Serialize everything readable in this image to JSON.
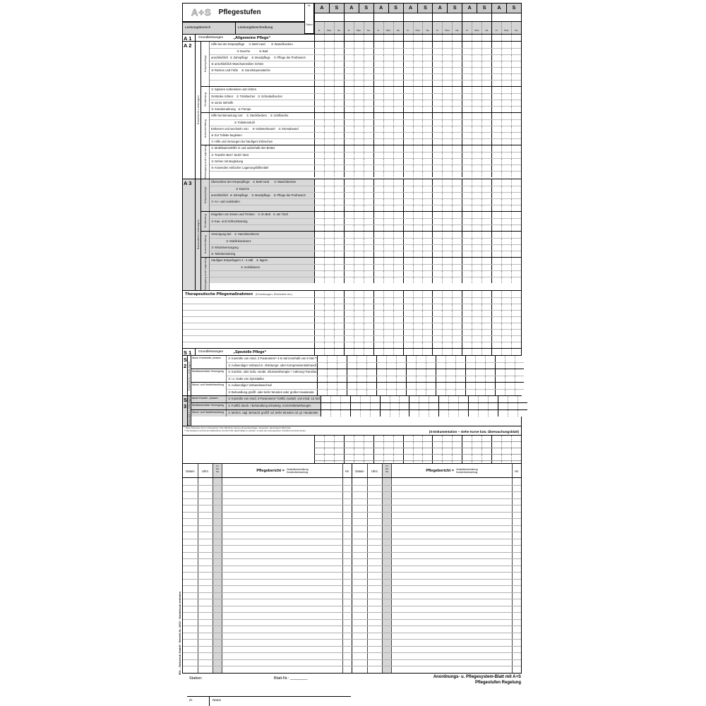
{
  "logo": "A+S",
  "title": "Pflegestufen",
  "grid": {
    "hz_label": "Hz.",
    "datum_label": "Datum",
    "pair_count": 7,
    "pair_headers": [
      "A",
      "S"
    ],
    "shift_labels": [
      "Fr.",
      "Über.",
      "Na."
    ]
  },
  "col_headers": {
    "bereich": "Leistungsbereich",
    "beschreibung": "Leistungsbeschreibung"
  },
  "a1": {
    "code": "A 1",
    "label": "Grundleistungen",
    "quote": "„Allgemeine Pflege“"
  },
  "a2": {
    "code": "A 2",
    "side": "Erweiterte Leistungen",
    "groups": [
      {
        "label": "Körperpflege",
        "rows": [
          "Hilfe bei der Körperpflege     ① Bett/-rand       ② Waschbecken",
          "                               ③ Dusche           ④ Bad",
          "anschließlich  ⑤ Zahnpflege    ⑥ Mundpflege    ⑦ Pflege der Prothese/n",
          "⑧ anschließlich Waschutensilien richten",
          "⑨ Rücken und Füße    ⑩ Ganzkörperwäsche",
          "",
          ""
        ]
      },
      {
        "label": "Ernährung",
        "rows": [
          "① Speisen vorbereiten und richten",
          "Getränke richten:   ② Trinkbecher   ③ Schnabelbecher",
          "④ sonst. Behelfe",
          "⑤ Sondennahrung   ⑥ Pumpe"
        ]
      },
      {
        "label": "Ausscheidung",
        "rows": [
          "Hilfe bei Benutzung von:    ① Steckbecken    ② Urinflasche",
          "                            ③ Toilettenstuhl",
          "Entleeren und wechseln von:    ④ Katheterbeutel    ⑤ Stomabeutel",
          "⑥ Zur Toilette begleiten",
          "⑦ Hilfe und Versorgen bei häufigem Erbrechen"
        ]
      },
      {
        "label": "Bewegung und Lagerung",
        "rows": [
          "① Mobilisationshilfe in und außerhalb des Bettes",
          "② Transfer Bett / Stuhl / Bett",
          "③ Gehen mit Begleitung",
          "④ Anwenden einfacher Lagerungshilfsmittel",
          ""
        ]
      }
    ]
  },
  "a3": {
    "code": "A 3",
    "side": "Besondere Leistungen",
    "groups": [
      {
        "label": "Körperpflege",
        "rows": [
          "Übernahme der Körperpflege:   ① Bett/-rand      ② Waschbecken",
          "                              ③ Dusche",
          "anschließlich  ④ Zahnpflege    ⑤ Mundpflege    ⑥ Pflege der Prothese/n",
          "⑦ An- und Auskleiden",
          ""
        ]
      },
      {
        "label": "Ernährung",
        "rows": [
          "Eingeben von Essen und Trinken:   ① im Bett   ② am Tisch",
          "③ Kau- und Schlucktraining",
          ""
        ]
      },
      {
        "label": "Ausscheidung",
        "rows": [
          "Versorgung bei:   ① Harninkontinenz",
          "                  ② Stuhlinkontinenz",
          "③ Windelversorgung",
          "④ Toilettentraining"
        ]
      },
      {
        "label": "Bewegung und Lagerung",
        "rows": [
          "Häufiges Körperlagern 2 - 4 stdl.   ① lagern",
          "                                    ② mobilisieren",
          "",
          ""
        ]
      }
    ]
  },
  "therapie": {
    "title": "Therapeutische Pflegemaßnahmen",
    "subtitle": "(Einreibungen, Einträufeln etc.)",
    "empty_rows": 8
  },
  "s1": {
    "code": "S 1",
    "label": "Grundleistungen",
    "quote": "„Spezielle Pflege“"
  },
  "s2": {
    "code": "S 2",
    "side": "Erweiterte Leistungen",
    "groups": [
      {
        "label": "Akute Krankheits- phasen",
        "rows": [
          "① Kontrolle von mind. 2 Parametern* 4-6 mal innerhalb von 8 Std.**",
          "② Aufwendiger Verband m. Ableitungs- oder Kompressionsbehandl."
        ]
      },
      {
        "label": "Medikamentöse Versorgung",
        "rows": [
          "① Kombin. oder indiv. verabr. Infusionstherapie / -nahrung-Transfus.",
          "② i.v. Gabe von Zytostatika"
        ]
      },
      {
        "label": "Wund- und Hautbehandlung",
        "rows": [
          "① Aufwendiger Verbandswechsel",
          "② Behandlung großfl. oder tiefer Wunden oder großer Hautareale"
        ]
      }
    ]
  },
  "s3": {
    "code": "S 3",
    "side": "Besondere Leistungen",
    "groups": [
      {
        "label": "Akute Krankh.- phasen",
        "rows": [
          "① Kontrolle von mind. 3 Parametern* fortlfd. zusätzl. von mind. 12 Std."
        ]
      },
      {
        "label": "Medikamentöse Versorgung",
        "rows": [
          "① Fortlfd. Beob. / Behandlung schwierig. Arzneimittelwirkungen"
        ]
      },
      {
        "label": "Wund- und Hautbehandlung",
        "rows": [
          "① Mehrm. tägl. Behandl. großfl. od. tiefer Wunden od. gr. Hautareale"
        ]
      }
    ]
  },
  "footnotes": {
    "line1": "* Diese Parameter sind zu überwachen: Puls, Blutdruck, Atmung, Bewusstseinslage, Temperatur, Hautzustand, Blutzucker",
    "line2": "** Die Zeiträume sind bei den Maßnahmen auf die 8 Std. gleichmäßig zu verteilen, so dass die Leistungsstufen zutreffend vermerkt werden.",
    "right": "(S-Dokumentation – siehe Kurve bzw. Überwachungsblatt)"
  },
  "tail_rows": 6,
  "bericht": {
    "datum": "Datum",
    "uhrz": "Uhrz.",
    "shift": "Fr/\nSp/\nNa",
    "title": "Pflegebericht =",
    "sub1": "Verlaufsbeschreibung",
    "sub2": "Krankenbeobachtung",
    "hz": "Hz.",
    "rows": 29
  },
  "footer": {
    "station": "Station:",
    "blatt": "Blatt-Nr.: ________",
    "right1": "Anordnungs- u. Pflegesystem-Blatt mit A+S",
    "right2": "Pflegestufen Regelung",
    "side": "501 – Dokutech GmbH · Bestell-Nr. 1002 · Nachdruck verboten"
  },
  "nextsheet": {
    "zi": "Zi.",
    "name": "Name"
  }
}
